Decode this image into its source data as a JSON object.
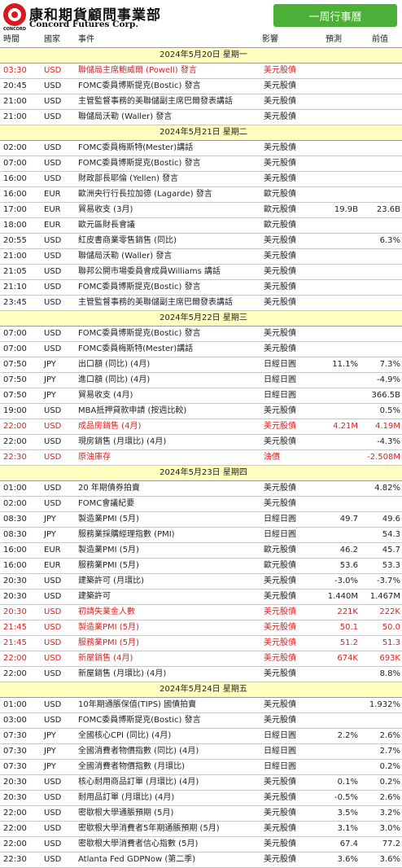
{
  "header": {
    "logo_cn": "康和期貨顧問事業部",
    "logo_en": "Concord Futures Corp.",
    "logo_small": "CONCORD",
    "badge": "一周行事曆"
  },
  "columns": [
    "時間",
    "國家",
    "事件",
    "影響",
    "預測",
    "前值"
  ],
  "sections": [
    {
      "date": "2024年5月20日  星期一",
      "rows": [
        {
          "time": "03:30",
          "country": "USD",
          "event": "聯儲局主席鮑威爾 (Powell) 發言",
          "impact": "美元股債",
          "forecast": "",
          "previous": "",
          "red": true
        },
        {
          "time": "20:45",
          "country": "USD",
          "event": "FOMC委員博斯提克(Bostic) 發言",
          "impact": "美元股債",
          "forecast": "",
          "previous": "",
          "red": false
        },
        {
          "time": "21:00",
          "country": "USD",
          "event": "主管監督事務的美聯儲副主席巴爾發表講話",
          "impact": "美元股債",
          "forecast": "",
          "previous": "",
          "red": false
        },
        {
          "time": "21:00",
          "country": "USD",
          "event": "聯儲局沃勒 (Waller) 發言",
          "impact": "美元股債",
          "forecast": "",
          "previous": "",
          "red": false
        }
      ]
    },
    {
      "date": "2024年5月21日  星期二",
      "rows": [
        {
          "time": "02:00",
          "country": "USD",
          "event": "FOMC委員梅斯特(Mester)講話",
          "impact": "美元股債",
          "forecast": "",
          "previous": "",
          "red": false
        },
        {
          "time": "07:00",
          "country": "USD",
          "event": "FOMC委員博斯提克(Bostic) 發言",
          "impact": "美元股債",
          "forecast": "",
          "previous": "",
          "red": false
        },
        {
          "time": "16:00",
          "country": "USD",
          "event": "財政部長耶倫 (Yellen) 發言",
          "impact": "美元股債",
          "forecast": "",
          "previous": "",
          "red": false
        },
        {
          "time": "16:00",
          "country": "EUR",
          "event": "歐洲央行行長拉加德 (Lagarde) 發言",
          "impact": "歐元股債",
          "forecast": "",
          "previous": "",
          "red": false
        },
        {
          "time": "17:00",
          "country": "EUR",
          "event": "貿易收支 (3月)",
          "impact": "歐元股債",
          "forecast": "19.9B",
          "previous": "23.6B",
          "red": false
        },
        {
          "time": "18:00",
          "country": "EUR",
          "event": "歐元區財長會議",
          "impact": "歐元股債",
          "forecast": "",
          "previous": "",
          "red": false
        },
        {
          "time": "20:55",
          "country": "USD",
          "event": "紅皮書商業零售銷售 (同比)",
          "impact": "美元股債",
          "forecast": "",
          "previous": "6.3%",
          "red": false
        },
        {
          "time": "21:00",
          "country": "USD",
          "event": "聯儲局沃勒 (Waller) 發言",
          "impact": "美元股債",
          "forecast": "",
          "previous": "",
          "red": false
        },
        {
          "time": "21:05",
          "country": "USD",
          "event": "聯邦公開市場委員會成員Williams 講話",
          "impact": "美元股債",
          "forecast": "",
          "previous": "",
          "red": false
        },
        {
          "time": "21:10",
          "country": "USD",
          "event": "FOMC委員博斯提克(Bostic) 發言",
          "impact": "美元股債",
          "forecast": "",
          "previous": "",
          "red": false
        },
        {
          "time": "23:45",
          "country": "USD",
          "event": "主管監督事務的美聯儲副主席巴爾發表講話",
          "impact": "美元股債",
          "forecast": "",
          "previous": "",
          "red": false
        }
      ]
    },
    {
      "date": "2024年5月22日  星期三",
      "rows": [
        {
          "time": "07:00",
          "country": "USD",
          "event": "FOMC委員博斯提克(Bostic) 發言",
          "impact": "美元股債",
          "forecast": "",
          "previous": "",
          "red": false
        },
        {
          "time": "07:00",
          "country": "USD",
          "event": "FOMC委員梅斯特(Mester)講話",
          "impact": "美元股債",
          "forecast": "",
          "previous": "",
          "red": false
        },
        {
          "time": "07:50",
          "country": "JPY",
          "event": "出口額 (同比) (4月)",
          "impact": "日經日圓",
          "forecast": "11.1%",
          "previous": "7.3%",
          "red": false
        },
        {
          "time": "07:50",
          "country": "JPY",
          "event": "進口額 (同比) (4月)",
          "impact": "日經日圓",
          "forecast": "",
          "previous": "-4.9%",
          "red": false
        },
        {
          "time": "07:50",
          "country": "JPY",
          "event": "貿易收支 (4月)",
          "impact": "日經日圓",
          "forecast": "",
          "previous": "366.5B",
          "red": false
        },
        {
          "time": "19:00",
          "country": "USD",
          "event": "MBA抵押貸款申請 (按週比較)",
          "impact": "美元股債",
          "forecast": "",
          "previous": "0.5%",
          "red": false
        },
        {
          "time": "22:00",
          "country": "USD",
          "event": "成品房銷售 (4月)",
          "impact": "美元股債",
          "forecast": "4.21M",
          "previous": "4.19M",
          "red": true
        },
        {
          "time": "22:00",
          "country": "USD",
          "event": "現房銷售 (月環比) (4月)",
          "impact": "美元股債",
          "forecast": "",
          "previous": "-4.3%",
          "red": false
        },
        {
          "time": "22:30",
          "country": "USD",
          "event": "原油庫存",
          "impact": "油價",
          "forecast": "",
          "previous": "-2.508M",
          "red": true
        }
      ]
    },
    {
      "date": "2024年5月23日  星期四",
      "rows": [
        {
          "time": "01:00",
          "country": "USD",
          "event": "20 年期債券拍賣",
          "impact": "美元股債",
          "forecast": "",
          "previous": "4.82%",
          "red": false
        },
        {
          "time": "02:00",
          "country": "USD",
          "event": "FOMC會議紀要",
          "impact": "美元股債",
          "forecast": "",
          "previous": "",
          "red": false
        },
        {
          "time": "08:30",
          "country": "JPY",
          "event": "製造業PMI (5月)",
          "impact": "日經日圓",
          "forecast": "49.7",
          "previous": "49.6",
          "red": false
        },
        {
          "time": "08:30",
          "country": "JPY",
          "event": "服務業採購經理指數 (PMI)",
          "impact": "日經日圓",
          "forecast": "",
          "previous": "54.3",
          "red": false
        },
        {
          "time": "16:00",
          "country": "EUR",
          "event": "製造業PMI (5月)",
          "impact": "歐元股債",
          "forecast": "46.2",
          "previous": "45.7",
          "red": false
        },
        {
          "time": "16:00",
          "country": "EUR",
          "event": "服務業PMI (5月)",
          "impact": "歐元股債",
          "forecast": "53.6",
          "previous": "53.3",
          "red": false
        },
        {
          "time": "20:30",
          "country": "USD",
          "event": "建築許可 (月環比)",
          "impact": "美元股債",
          "forecast": "-3.0%",
          "previous": "-3.7%",
          "red": false
        },
        {
          "time": "20:30",
          "country": "USD",
          "event": "建築許可",
          "impact": "美元股債",
          "forecast": "1.440M",
          "previous": "1.467M",
          "red": false
        },
        {
          "time": "20:30",
          "country": "USD",
          "event": "初請失業金人數",
          "impact": "美元股債",
          "forecast": "221K",
          "previous": "222K",
          "red": true
        },
        {
          "time": "21:45",
          "country": "USD",
          "event": "製造業PMI (5月)",
          "impact": "美元股債",
          "forecast": "50.1",
          "previous": "50.0",
          "red": true
        },
        {
          "time": "21:45",
          "country": "USD",
          "event": "服務業PMI (5月)",
          "impact": "美元股債",
          "forecast": "51.2",
          "previous": "51.3",
          "red": true
        },
        {
          "time": "22:00",
          "country": "USD",
          "event": "新屋銷售 (4月)",
          "impact": "美元股債",
          "forecast": "674K",
          "previous": "693K",
          "red": true
        },
        {
          "time": "22:00",
          "country": "USD",
          "event": "新屋銷售 (月環比) (4月)",
          "impact": "美元股債",
          "forecast": "",
          "previous": "8.8%",
          "red": false
        }
      ]
    },
    {
      "date": "2024年5月24日  星期五",
      "rows": [
        {
          "time": "01:00",
          "country": "USD",
          "event": "10年期通脹保值(TIPS) 國債拍賣",
          "impact": "美元股債",
          "forecast": "",
          "previous": "1.932%",
          "red": false
        },
        {
          "time": "03:00",
          "country": "USD",
          "event": "FOMC委員博斯提克(Bostic) 發言",
          "impact": "美元股債",
          "forecast": "",
          "previous": "",
          "red": false
        },
        {
          "time": "07:30",
          "country": "JPY",
          "event": "全國核心CPI (同比) (4月)",
          "impact": "日經日圓",
          "forecast": "2.2%",
          "previous": "2.6%",
          "red": false
        },
        {
          "time": "07:30",
          "country": "JPY",
          "event": "全國消費者物價指數 (同比) (4月)",
          "impact": "日經日圓",
          "forecast": "",
          "previous": "2.7%",
          "red": false
        },
        {
          "time": "07:30",
          "country": "JPY",
          "event": "全國消費者物價指數 (月環比)",
          "impact": "日經日圓",
          "forecast": "",
          "previous": "0.2%",
          "red": false
        },
        {
          "time": "20:30",
          "country": "USD",
          "event": "核心耐用商品訂單 (月環比) (4月)",
          "impact": "美元股債",
          "forecast": "0.1%",
          "previous": "0.2%",
          "red": false
        },
        {
          "time": "20:30",
          "country": "USD",
          "event": "耐用品訂單 (月環比) (4月)",
          "impact": "美元股債",
          "forecast": "-0.5%",
          "previous": "2.6%",
          "red": false
        },
        {
          "time": "22:00",
          "country": "USD",
          "event": "密歇根大學通脹預期 (5月)",
          "impact": "美元股債",
          "forecast": "3.5%",
          "previous": "3.2%",
          "red": false
        },
        {
          "time": "22:00",
          "country": "USD",
          "event": "密歇根大學消費者5年期通脹預期 (5月)",
          "impact": "美元股債",
          "forecast": "3.1%",
          "previous": "3.0%",
          "red": false
        },
        {
          "time": "22:00",
          "country": "USD",
          "event": "密歇根大學消費者信心指數 (5月)",
          "impact": "美元股債",
          "forecast": "67.4",
          "previous": "77.2",
          "red": false
        },
        {
          "time": "22:30",
          "country": "USD",
          "event": "Atlanta Fed GDPNow (第二季)",
          "impact": "美元股債",
          "forecast": "3.6%",
          "previous": "3.6%",
          "red": false
        }
      ]
    }
  ]
}
